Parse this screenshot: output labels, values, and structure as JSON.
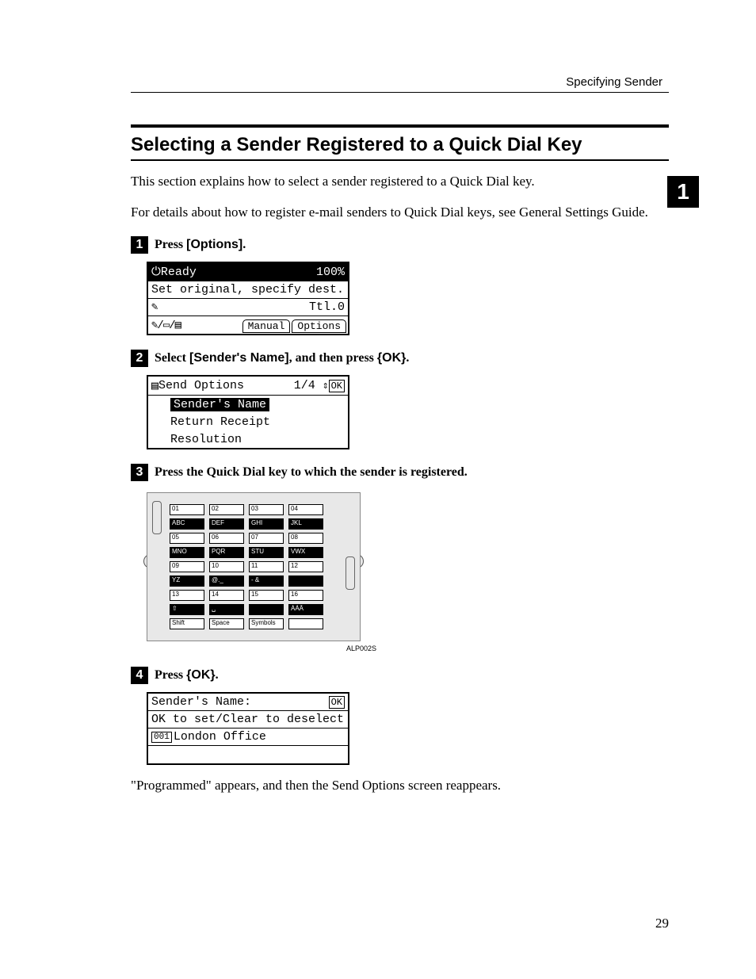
{
  "header": {
    "running_head": "Specifying Sender"
  },
  "side_tab": "1",
  "section": {
    "title": "Selecting a Sender Registered to a Quick Dial Key",
    "intro1": "This section explains how to select a sender registered to a Quick Dial key.",
    "intro2": "For details about how to register e-mail senders to Quick Dial keys, see General Settings Guide."
  },
  "steps": {
    "s1": {
      "num": "1",
      "t_a": "Press ",
      "t_b": "[Options]",
      "t_c": "."
    },
    "s2": {
      "num": "2",
      "t_a": "Select ",
      "t_b": "[Sender's Name]",
      "t_c": ", and then press ",
      "t_d": "{OK}",
      "t_e": "."
    },
    "s3": {
      "num": "3",
      "t_a": "Press the Quick Dial key to which the sender is registered."
    },
    "s4": {
      "num": "4",
      "t_a": "Press ",
      "t_b": "{OK}",
      "t_c": "."
    }
  },
  "lcd1": {
    "r1_status": "Ready",
    "r1_pct": "100%",
    "r2": "Set original, specify dest.",
    "r3_icon": "✎",
    "r3_right": "Ttl.0",
    "r4_icons": "✎/▭/▤",
    "r4_tab1": "Manual",
    "r4_tab2": "Options"
  },
  "lcd2": {
    "r1_icon": "▤",
    "r1_title": "Send Options",
    "r1_page": "1/4",
    "r1_ud": "⇕",
    "r1_ok": "OK",
    "i1": "Sender's Name",
    "i2": "Return Receipt",
    "i3": "Resolution"
  },
  "keypad": {
    "rows": [
      [
        "01",
        "02",
        "03",
        "04"
      ],
      [
        "ABC",
        "DEF",
        "GHI",
        "JKL"
      ],
      [
        "05",
        "06",
        "07",
        "08"
      ],
      [
        "MNO",
        "PQR",
        "STU",
        "VWX"
      ],
      [
        "09",
        "10",
        "11",
        "12"
      ],
      [
        "YZ",
        "@._",
        "- &",
        ""
      ],
      [
        "13",
        "14",
        "15",
        "16"
      ],
      [
        "⇧",
        "␣",
        "",
        "ÀÁÂ"
      ],
      [
        "Shift",
        "Space",
        "Symbols",
        ""
      ]
    ],
    "inv_rows": [
      1,
      3,
      5,
      7
    ],
    "image_id": "ALP002S"
  },
  "lcd3": {
    "r1_label": "Sender's Name:",
    "r1_ok": "OK",
    "r2": "OK to set/Clear to deselect",
    "r3_id": "001",
    "r3_name": "London Office"
  },
  "after": "\"Programmed\" appears, and then the Send Options screen reappears.",
  "page_number": "29",
  "colors": {
    "fg": "#000000",
    "bg": "#ffffff",
    "panel": "#e8e8e8"
  }
}
